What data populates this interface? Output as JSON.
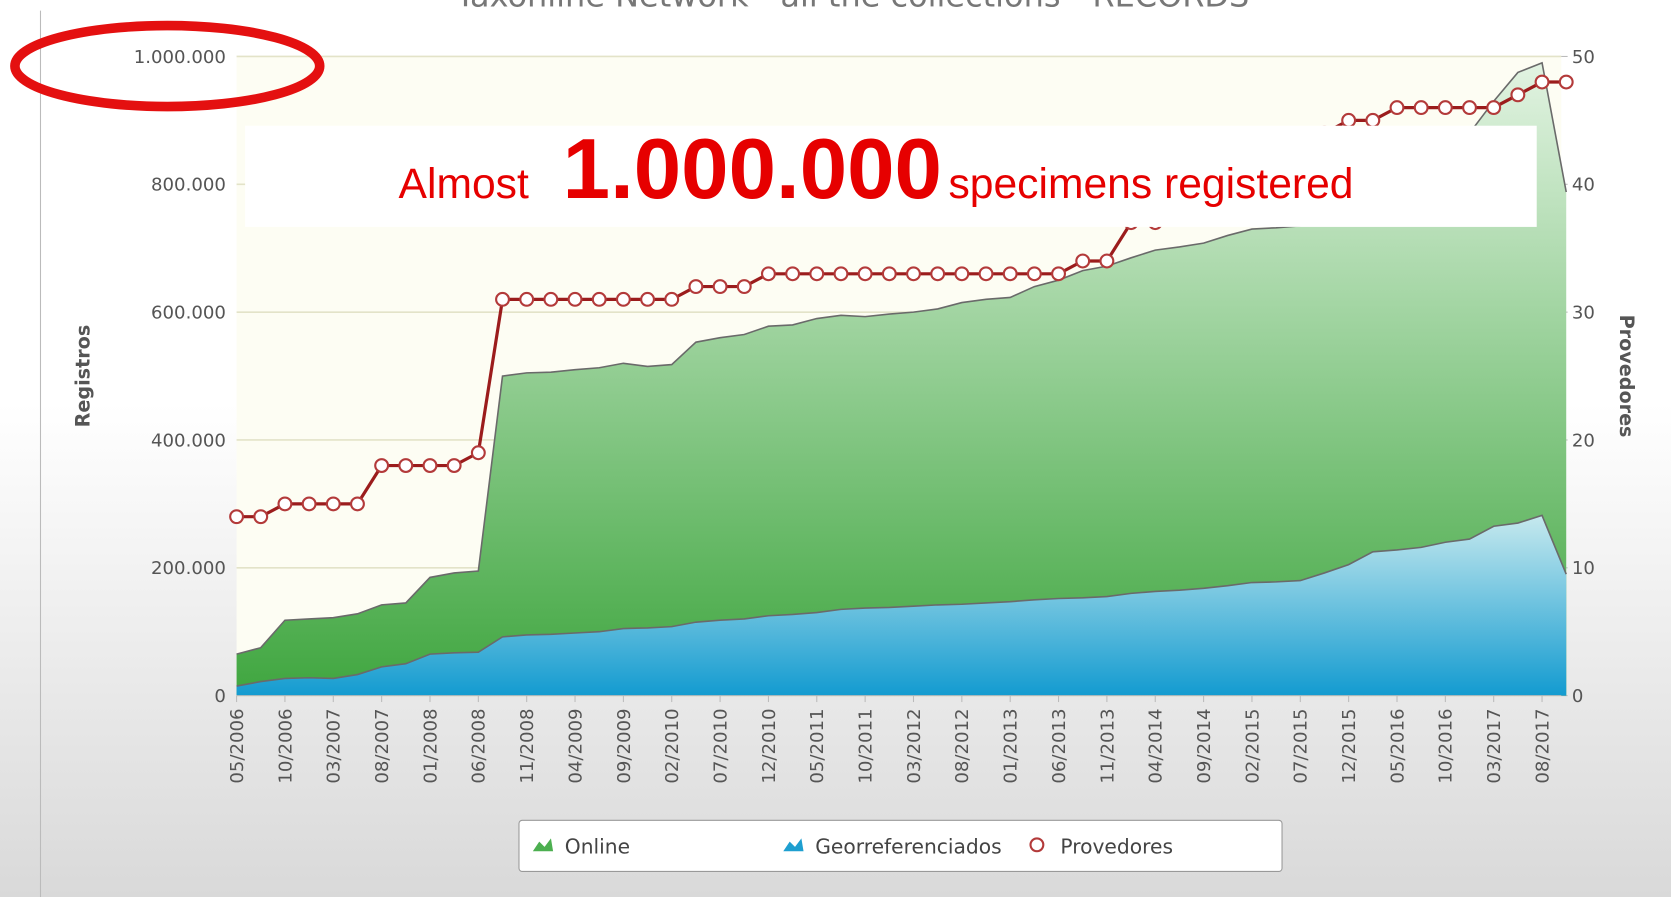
{
  "chart_data": {
    "type": "area",
    "title": "Taxonline Network - all the collections - RECORDS",
    "annotation": [
      "Almost",
      "1.000.000",
      "specimens registered"
    ],
    "y_label": "Registros",
    "y2_label": "Provedores",
    "categories": [
      "05/2006",
      null,
      "10/2006",
      null,
      "03/2007",
      null,
      "08/2007",
      null,
      "01/2008",
      null,
      "06/2008",
      null,
      "11/2008",
      null,
      "04/2009",
      null,
      "09/2009",
      null,
      "02/2010",
      null,
      "07/2010",
      null,
      "12/2010",
      null,
      "05/2011",
      null,
      "10/2011",
      null,
      "03/2012",
      null,
      "08/2012",
      null,
      "01/2013",
      null,
      "06/2013",
      null,
      "11/2013",
      null,
      "04/2014",
      null,
      "09/2014",
      null,
      "02/2015",
      null,
      "07/2015",
      null,
      "12/2015",
      null,
      "05/2016",
      null,
      "10/2016",
      null,
      "03/2017",
      null,
      "08/2017",
      null
    ],
    "series": [
      {
        "name": "Online",
        "color": "#4caf50",
        "values": [
          65000,
          75000,
          118000,
          120000,
          122000,
          128000,
          142000,
          145000,
          185000,
          192000,
          195000,
          500000,
          505000,
          506000,
          510000,
          513000,
          520000,
          515000,
          518000,
          553000,
          560000,
          565000,
          578000,
          580000,
          590000,
          595000,
          593000,
          597000,
          600000,
          605000,
          615000,
          620000,
          623000,
          640000,
          650000,
          665000,
          672000,
          685000,
          697000,
          702000,
          708000,
          720000,
          730000,
          732000,
          735000,
          750000,
          770000,
          790000,
          810000,
          830000,
          850000,
          880000,
          930000,
          975000,
          990000,
          788000
        ]
      },
      {
        "name": "Georreferenciados",
        "color": "#1e9fd0",
        "values": [
          15000,
          22000,
          27000,
          28000,
          27000,
          33000,
          45000,
          50000,
          65000,
          67000,
          68000,
          92000,
          95000,
          96000,
          98000,
          100000,
          105000,
          106000,
          108000,
          115000,
          118000,
          120000,
          125000,
          127000,
          130000,
          135000,
          137000,
          138000,
          140000,
          142000,
          143000,
          145000,
          147000,
          150000,
          152000,
          153000,
          155000,
          160000,
          163000,
          165000,
          168000,
          172000,
          177000,
          178000,
          180000,
          192000,
          205000,
          225000,
          228000,
          232000,
          240000,
          245000,
          265000,
          270000,
          282000,
          190000
        ]
      },
      {
        "name": "Provedores",
        "color": "#9b1c1c",
        "axis": "y2",
        "values": [
          14,
          14,
          15,
          15,
          15,
          15,
          18,
          18,
          18,
          18,
          19,
          31,
          31,
          31,
          31,
          31,
          31,
          31,
          31,
          32,
          32,
          32,
          33,
          33,
          33,
          33,
          33,
          33,
          33,
          33,
          33,
          33,
          33,
          33,
          33,
          34,
          34,
          37,
          37,
          38,
          39,
          40,
          41,
          42,
          43,
          44,
          45,
          45,
          46,
          46,
          46,
          46,
          46,
          47,
          48,
          48
        ]
      }
    ],
    "ylim": [
      0,
      1000000
    ],
    "yticks": [
      0,
      {
        "value": 200000,
        "label": "200.000"
      },
      {
        "value": 400000,
        "label": "400.000"
      },
      {
        "value": 600000,
        "label": "600.000"
      },
      {
        "value": 800000,
        "label": "800.000"
      },
      {
        "value": 1000000,
        "label": "1.000.000"
      }
    ],
    "y2lim": [
      0,
      50
    ],
    "y2ticks": [
      0,
      10,
      20,
      30,
      40,
      50
    ],
    "grid": true
  }
}
